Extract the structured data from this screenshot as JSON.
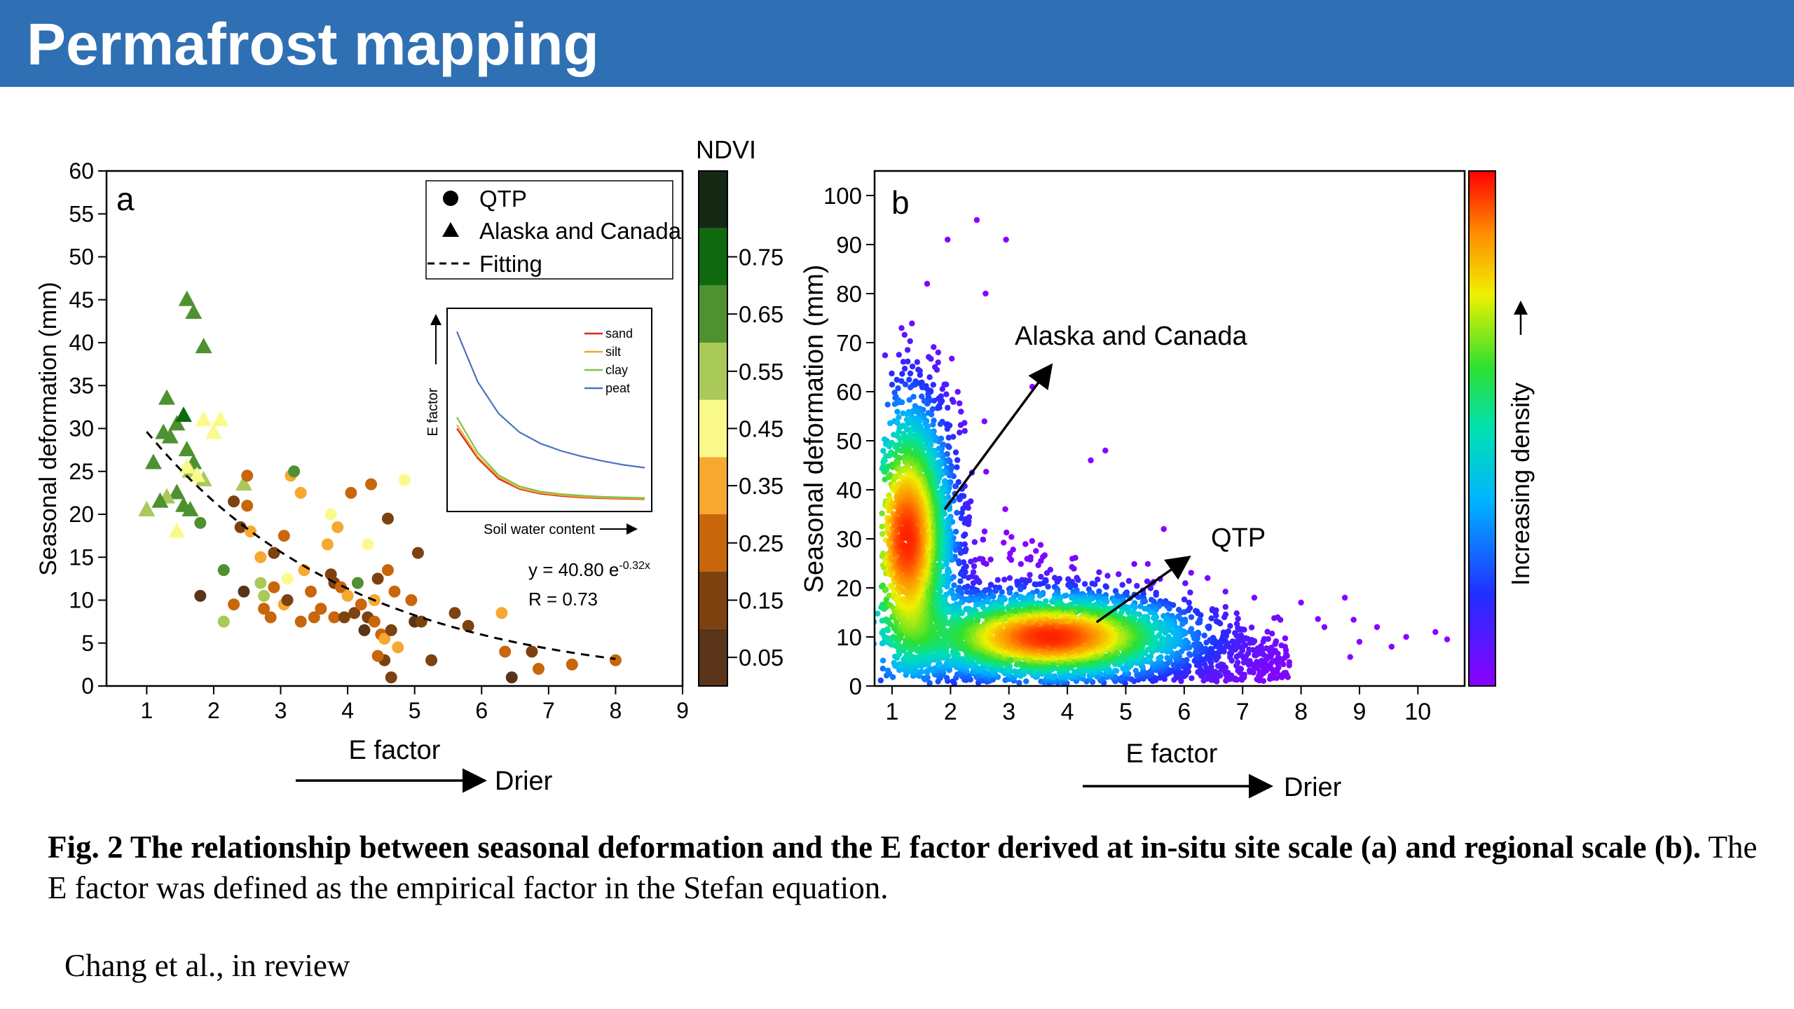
{
  "header": {
    "title": "Permafrost mapping"
  },
  "caption": {
    "bold": "Fig. 2 The relationship between seasonal deformation and the E factor derived at in-situ site scale (a) and regional scale (b).",
    "text": "The E factor was defined as the empirical factor in the Stefan equation."
  },
  "credit": "Chang et al., in review",
  "colors": {
    "banner": "#2f6fb3",
    "banner_text": "#ffffff"
  },
  "chart_data": [
    {
      "panel": "a",
      "type": "scatter",
      "xlabel": "E factor",
      "ylabel": "Seasonal deformation (mm)",
      "direction_label": "Drier",
      "xlim": [
        0.4,
        9
      ],
      "ylim": [
        0,
        60
      ],
      "xticks": [
        "1",
        "2",
        "3",
        "4",
        "5",
        "6",
        "7",
        "8",
        "9"
      ],
      "yticks": [
        "0",
        "5",
        "10",
        "15",
        "20",
        "25",
        "30",
        "35",
        "40",
        "45",
        "50",
        "55",
        "60"
      ],
      "legend": {
        "position": "top-right",
        "items": [
          "QTP",
          "Alaska and Canada",
          "Fitting"
        ]
      },
      "equation": {
        "prefix": "y = 40.80 e",
        "exponent": "-0.32x",
        "r": "R = 0.73"
      },
      "fit": {
        "type": "exponential",
        "a": 40.8,
        "b": -0.32,
        "x_range": [
          1,
          8
        ]
      },
      "colorbar": {
        "title": "NDVI",
        "ticks": [
          "0.05",
          "0.15",
          "0.25",
          "0.35",
          "0.45",
          "0.55",
          "0.65",
          "0.75"
        ],
        "range": [
          0,
          0.9
        ],
        "bins": [
          {
            "from": 0.0,
            "to": 0.1,
            "color": "#5a3418"
          },
          {
            "from": 0.1,
            "to": 0.2,
            "color": "#7c4210"
          },
          {
            "from": 0.2,
            "to": 0.3,
            "color": "#c8660c"
          },
          {
            "from": 0.3,
            "to": 0.4,
            "color": "#f6a830"
          },
          {
            "from": 0.4,
            "to": 0.5,
            "color": "#fafa8c"
          },
          {
            "from": 0.5,
            "to": 0.6,
            "color": "#a9c958"
          },
          {
            "from": 0.6,
            "to": 0.7,
            "color": "#4f9130"
          },
          {
            "from": 0.7,
            "to": 0.8,
            "color": "#0f6a0f"
          },
          {
            "from": 0.8,
            "to": 0.9,
            "color": "#142814"
          }
        ]
      },
      "series": [
        {
          "name": "Alaska and Canada",
          "marker": "triangle",
          "points": [
            [
              1.6,
              45.0,
              0.6
            ],
            [
              1.7,
              43.5,
              0.6
            ],
            [
              1.85,
              39.5,
              0.6
            ],
            [
              1.3,
              33.5,
              0.6
            ],
            [
              1.45,
              30.5,
              0.6
            ],
            [
              1.55,
              31.5,
              0.7
            ],
            [
              1.35,
              29.0,
              0.6
            ],
            [
              1.25,
              29.5,
              0.6
            ],
            [
              1.6,
              27.5,
              0.6
            ],
            [
              1.7,
              26.0,
              0.6
            ],
            [
              1.1,
              26.0,
              0.6
            ],
            [
              1.65,
              25.0,
              0.5
            ],
            [
              1.85,
              24.0,
              0.5
            ],
            [
              2.45,
              23.5,
              0.5
            ],
            [
              1.45,
              22.5,
              0.6
            ],
            [
              1.3,
              22.0,
              0.5
            ],
            [
              1.2,
              21.5,
              0.6
            ],
            [
              1.55,
              21.0,
              0.6
            ],
            [
              1.65,
              20.5,
              0.6
            ],
            [
              1.0,
              20.5,
              0.5
            ],
            [
              1.45,
              18.0,
              0.45
            ],
            [
              1.85,
              31.0,
              0.45
            ],
            [
              2.1,
              31.0,
              0.45
            ],
            [
              1.75,
              24.5,
              0.45
            ],
            [
              1.6,
              25.5,
              0.45
            ],
            [
              2.0,
              29.5,
              0.45
            ]
          ]
        },
        {
          "name": "QTP",
          "marker": "circle",
          "points": [
            [
              1.8,
              19.0,
              0.6
            ],
            [
              1.8,
              10.5,
              0.05
            ],
            [
              2.15,
              13.5,
              0.6
            ],
            [
              2.15,
              7.5,
              0.5
            ],
            [
              2.3,
              21.5,
              0.1
            ],
            [
              2.4,
              18.5,
              0.15
            ],
            [
              2.5,
              24.5,
              0.2
            ],
            [
              2.5,
              21.0,
              0.25
            ],
            [
              2.55,
              18.0,
              0.3
            ],
            [
              2.3,
              9.5,
              0.25
            ],
            [
              2.45,
              11.0,
              0.05
            ],
            [
              2.7,
              15.0,
              0.3
            ],
            [
              2.75,
              10.5,
              0.5
            ],
            [
              2.7,
              12.0,
              0.5
            ],
            [
              2.75,
              9.0,
              0.2
            ],
            [
              2.85,
              8.0,
              0.25
            ],
            [
              2.9,
              15.5,
              0.15
            ],
            [
              3.05,
              9.5,
              0.3
            ],
            [
              3.05,
              17.5,
              0.25
            ],
            [
              3.1,
              12.5,
              0.4
            ],
            [
              3.1,
              10.0,
              0.1
            ],
            [
              3.15,
              24.5,
              0.35
            ],
            [
              3.2,
              25.0,
              0.6
            ],
            [
              3.3,
              22.5,
              0.3
            ],
            [
              3.35,
              13.5,
              0.35
            ],
            [
              3.45,
              11.0,
              0.2
            ],
            [
              3.5,
              8.0,
              0.25
            ],
            [
              3.6,
              9.0,
              0.25
            ],
            [
              3.75,
              20.0,
              0.4
            ],
            [
              3.7,
              16.5,
              0.3
            ],
            [
              3.75,
              13.0,
              0.1
            ],
            [
              3.8,
              12.0,
              0.15
            ],
            [
              3.8,
              8.0,
              0.25
            ],
            [
              3.85,
              18.5,
              0.3
            ],
            [
              3.9,
              11.5,
              0.25
            ],
            [
              3.95,
              8.0,
              0.1
            ],
            [
              4.0,
              10.5,
              0.3
            ],
            [
              4.05,
              22.5,
              0.25
            ],
            [
              4.1,
              8.5,
              0.1
            ],
            [
              4.15,
              12.0,
              0.6
            ],
            [
              4.2,
              9.5,
              0.2
            ],
            [
              4.3,
              16.5,
              0.4
            ],
            [
              4.3,
              8.0,
              0.15
            ],
            [
              4.35,
              23.5,
              0.25
            ],
            [
              4.4,
              10.0,
              0.3
            ],
            [
              4.4,
              7.5,
              0.2
            ],
            [
              4.45,
              12.5,
              0.1
            ],
            [
              4.5,
              6.0,
              0.25
            ],
            [
              4.55,
              5.5,
              0.3
            ],
            [
              4.55,
              3.0,
              0.1
            ],
            [
              4.6,
              19.5,
              0.1
            ],
            [
              4.6,
              13.5,
              0.2
            ],
            [
              4.65,
              6.5,
              0.1
            ],
            [
              4.65,
              1.0,
              0.1
            ],
            [
              4.7,
              11.0,
              0.25
            ],
            [
              4.75,
              4.5,
              0.3
            ],
            [
              4.85,
              24.0,
              0.4
            ],
            [
              4.95,
              10.0,
              0.25
            ],
            [
              5.0,
              7.5,
              0.05
            ],
            [
              5.05,
              15.5,
              0.1
            ],
            [
              5.1,
              7.5,
              0.1
            ],
            [
              5.25,
              3.0,
              0.1
            ],
            [
              5.6,
              8.5,
              0.15
            ],
            [
              5.8,
              7.0,
              0.15
            ],
            [
              6.3,
              8.5,
              0.3
            ],
            [
              6.35,
              4.0,
              0.25
            ],
            [
              6.45,
              1.0,
              0.05
            ],
            [
              6.75,
              4.0,
              0.1
            ],
            [
              6.85,
              2.0,
              0.25
            ],
            [
              7.35,
              2.5,
              0.25
            ],
            [
              8.0,
              3.0,
              0.25
            ],
            [
              4.25,
              6.5,
              0.05
            ],
            [
              3.3,
              7.5,
              0.2
            ],
            [
              2.9,
              11.5,
              0.25
            ],
            [
              4.45,
              3.5,
              0.2
            ]
          ]
        }
      ],
      "inset": {
        "type": "line",
        "xlabel": "Soil water content",
        "ylabel": "E factor",
        "series": [
          {
            "name": "sand",
            "color": "#d7261e",
            "values": [
              0.4,
              0.24,
              0.13,
              0.075,
              0.05,
              0.038,
              0.03,
              0.026,
              0.023,
              0.021
            ]
          },
          {
            "name": "silt",
            "color": "#f0a830",
            "values": [
              0.42,
              0.25,
              0.14,
              0.08,
              0.055,
              0.042,
              0.034,
              0.029,
              0.026,
              0.024
            ]
          },
          {
            "name": "clay",
            "color": "#84c04a",
            "values": [
              0.46,
              0.27,
              0.15,
              0.09,
              0.062,
              0.048,
              0.04,
              0.034,
              0.031,
              0.028
            ]
          },
          {
            "name": "peat",
            "color": "#4a72c0",
            "values": [
              0.92,
              0.65,
              0.48,
              0.38,
              0.32,
              0.28,
              0.25,
              0.225,
              0.205,
              0.19
            ]
          }
        ]
      }
    },
    {
      "panel": "b",
      "type": "scatter",
      "subtype": "density",
      "xlabel": "E factor",
      "ylabel": "Seasonal deformation (mm)",
      "direction_label": "Drier",
      "colorbar_label": "Increasing density",
      "xlim": [
        0.7,
        10.8
      ],
      "ylim": [
        0,
        105
      ],
      "xticks": [
        "1",
        "2",
        "3",
        "4",
        "5",
        "6",
        "7",
        "8",
        "9",
        "10"
      ],
      "yticks": [
        "0",
        "10",
        "20",
        "30",
        "40",
        "50",
        "60",
        "70",
        "80",
        "90",
        "100"
      ],
      "clusters": [
        {
          "label": "Alaska and Canada",
          "center": [
            1.25,
            30.0
          ],
          "spread": [
            0.4,
            14.0
          ]
        },
        {
          "label": "QTP",
          "center": [
            3.7,
            10.0
          ],
          "spread": [
            1.2,
            4.5
          ]
        }
      ],
      "annotations": [
        {
          "text": "Alaska and Canada",
          "points_from": [
            1.9,
            36.0
          ],
          "points_to": [
            3.7,
            65.0
          ]
        },
        {
          "text": "QTP",
          "points_from": [
            4.5,
            13.0
          ],
          "points_to": [
            6.05,
            26.0
          ]
        }
      ],
      "outliers": [
        [
          2.45,
          95.0
        ],
        [
          2.95,
          91.0
        ],
        [
          1.95,
          91.0
        ],
        [
          1.6,
          82.0
        ],
        [
          2.6,
          80.0
        ],
        [
          3.4,
          61.0
        ],
        [
          4.65,
          48.0
        ],
        [
          4.4,
          46.0
        ],
        [
          5.65,
          32.0
        ],
        [
          6.4,
          22.0
        ],
        [
          7.2,
          18.0
        ],
        [
          8.0,
          17.0
        ],
        [
          8.75,
          18.0
        ],
        [
          9.3,
          12.0
        ],
        [
          9.8,
          10.0
        ],
        [
          10.3,
          11.0
        ],
        [
          10.5,
          9.5
        ],
        [
          8.4,
          12.0
        ],
        [
          9.0,
          9.0
        ],
        [
          9.55,
          8.0
        ],
        [
          7.6,
          14.0
        ],
        [
          8.9,
          13.5
        ],
        [
          1.05,
          6.0
        ],
        [
          2.2,
          2.0
        ]
      ]
    }
  ]
}
